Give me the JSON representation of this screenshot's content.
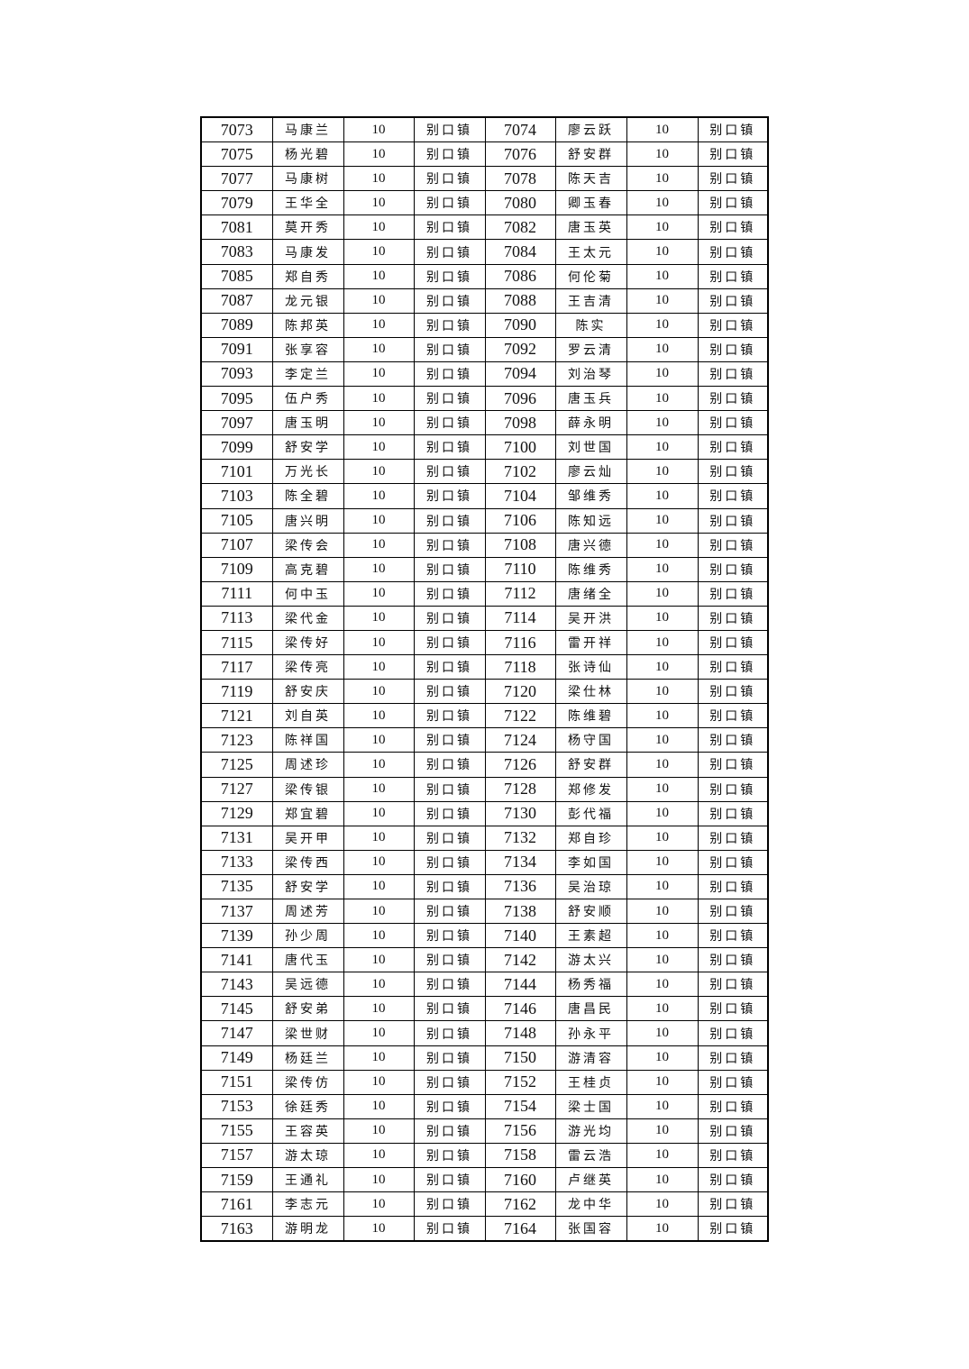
{
  "table": {
    "rows": [
      [
        "7073",
        "马康兰",
        "10",
        "别口镇",
        "7074",
        "廖云跃",
        "10",
        "别口镇"
      ],
      [
        "7075",
        "杨光碧",
        "10",
        "别口镇",
        "7076",
        "舒安群",
        "10",
        "别口镇"
      ],
      [
        "7077",
        "马康树",
        "10",
        "别口镇",
        "7078",
        "陈天吉",
        "10",
        "别口镇"
      ],
      [
        "7079",
        "王华全",
        "10",
        "别口镇",
        "7080",
        "卿玉春",
        "10",
        "别口镇"
      ],
      [
        "7081",
        "莫开秀",
        "10",
        "别口镇",
        "7082",
        "唐玉英",
        "10",
        "别口镇"
      ],
      [
        "7083",
        "马康发",
        "10",
        "别口镇",
        "7084",
        "王太元",
        "10",
        "别口镇"
      ],
      [
        "7085",
        "郑自秀",
        "10",
        "别口镇",
        "7086",
        "何伦菊",
        "10",
        "别口镇"
      ],
      [
        "7087",
        "龙元银",
        "10",
        "别口镇",
        "7088",
        "王吉清",
        "10",
        "别口镇"
      ],
      [
        "7089",
        "陈邦英",
        "10",
        "别口镇",
        "7090",
        "陈实",
        "10",
        "别口镇"
      ],
      [
        "7091",
        "张享容",
        "10",
        "别口镇",
        "7092",
        "罗云清",
        "10",
        "别口镇"
      ],
      [
        "7093",
        "李定兰",
        "10",
        "别口镇",
        "7094",
        "刘治琴",
        "10",
        "别口镇"
      ],
      [
        "7095",
        "伍户秀",
        "10",
        "别口镇",
        "7096",
        "唐玉兵",
        "10",
        "别口镇"
      ],
      [
        "7097",
        "唐玉明",
        "10",
        "别口镇",
        "7098",
        "薛永明",
        "10",
        "别口镇"
      ],
      [
        "7099",
        "舒安学",
        "10",
        "别口镇",
        "7100",
        "刘世国",
        "10",
        "别口镇"
      ],
      [
        "7101",
        "万光长",
        "10",
        "别口镇",
        "7102",
        "廖云灿",
        "10",
        "别口镇"
      ],
      [
        "7103",
        "陈全碧",
        "10",
        "别口镇",
        "7104",
        "邹维秀",
        "10",
        "别口镇"
      ],
      [
        "7105",
        "唐兴明",
        "10",
        "别口镇",
        "7106",
        "陈知远",
        "10",
        "别口镇"
      ],
      [
        "7107",
        "梁传会",
        "10",
        "别口镇",
        "7108",
        "唐兴德",
        "10",
        "别口镇"
      ],
      [
        "7109",
        "高克碧",
        "10",
        "别口镇",
        "7110",
        "陈维秀",
        "10",
        "别口镇"
      ],
      [
        "7111",
        "何中玉",
        "10",
        "别口镇",
        "7112",
        "唐绪全",
        "10",
        "别口镇"
      ],
      [
        "7113",
        "梁代金",
        "10",
        "别口镇",
        "7114",
        "吴开洪",
        "10",
        "别口镇"
      ],
      [
        "7115",
        "梁传好",
        "10",
        "别口镇",
        "7116",
        "雷开祥",
        "10",
        "别口镇"
      ],
      [
        "7117",
        "梁传亮",
        "10",
        "别口镇",
        "7118",
        "张诗仙",
        "10",
        "别口镇"
      ],
      [
        "7119",
        "舒安庆",
        "10",
        "别口镇",
        "7120",
        "梁仕林",
        "10",
        "别口镇"
      ],
      [
        "7121",
        "刘自英",
        "10",
        "别口镇",
        "7122",
        "陈维碧",
        "10",
        "别口镇"
      ],
      [
        "7123",
        "陈祥国",
        "10",
        "别口镇",
        "7124",
        "杨守国",
        "10",
        "别口镇"
      ],
      [
        "7125",
        "周述珍",
        "10",
        "别口镇",
        "7126",
        "舒安群",
        "10",
        "别口镇"
      ],
      [
        "7127",
        "梁传银",
        "10",
        "别口镇",
        "7128",
        "郑修发",
        "10",
        "别口镇"
      ],
      [
        "7129",
        "郑宜碧",
        "10",
        "别口镇",
        "7130",
        "彭代福",
        "10",
        "别口镇"
      ],
      [
        "7131",
        "吴开甲",
        "10",
        "别口镇",
        "7132",
        "郑自珍",
        "10",
        "别口镇"
      ],
      [
        "7133",
        "梁传西",
        "10",
        "别口镇",
        "7134",
        "李如国",
        "10",
        "别口镇"
      ],
      [
        "7135",
        "舒安学",
        "10",
        "别口镇",
        "7136",
        "吴治琼",
        "10",
        "别口镇"
      ],
      [
        "7137",
        "周述芳",
        "10",
        "别口镇",
        "7138",
        "舒安顺",
        "10",
        "别口镇"
      ],
      [
        "7139",
        "孙少周",
        "10",
        "别口镇",
        "7140",
        "王素超",
        "10",
        "别口镇"
      ],
      [
        "7141",
        "唐代玉",
        "10",
        "别口镇",
        "7142",
        "游太兴",
        "10",
        "别口镇"
      ],
      [
        "7143",
        "吴远德",
        "10",
        "别口镇",
        "7144",
        "杨秀福",
        "10",
        "别口镇"
      ],
      [
        "7145",
        "舒安弟",
        "10",
        "别口镇",
        "7146",
        "唐昌民",
        "10",
        "别口镇"
      ],
      [
        "7147",
        "梁世财",
        "10",
        "别口镇",
        "7148",
        "孙永平",
        "10",
        "别口镇"
      ],
      [
        "7149",
        "杨廷兰",
        "10",
        "别口镇",
        "7150",
        "游清容",
        "10",
        "别口镇"
      ],
      [
        "7151",
        "梁传仿",
        "10",
        "别口镇",
        "7152",
        "王桂贞",
        "10",
        "别口镇"
      ],
      [
        "7153",
        "徐廷秀",
        "10",
        "别口镇",
        "7154",
        "梁士国",
        "10",
        "别口镇"
      ],
      [
        "7155",
        "王容英",
        "10",
        "别口镇",
        "7156",
        "游光均",
        "10",
        "别口镇"
      ],
      [
        "7157",
        "游太琼",
        "10",
        "别口镇",
        "7158",
        "雷云浩",
        "10",
        "别口镇"
      ],
      [
        "7159",
        "王通礼",
        "10",
        "别口镇",
        "7160",
        "卢继英",
        "10",
        "别口镇"
      ],
      [
        "7161",
        "李志元",
        "10",
        "别口镇",
        "7162",
        "龙中华",
        "10",
        "别口镇"
      ],
      [
        "7163",
        "游明龙",
        "10",
        "别口镇",
        "7164",
        "张国容",
        "10",
        "别口镇"
      ]
    ]
  }
}
